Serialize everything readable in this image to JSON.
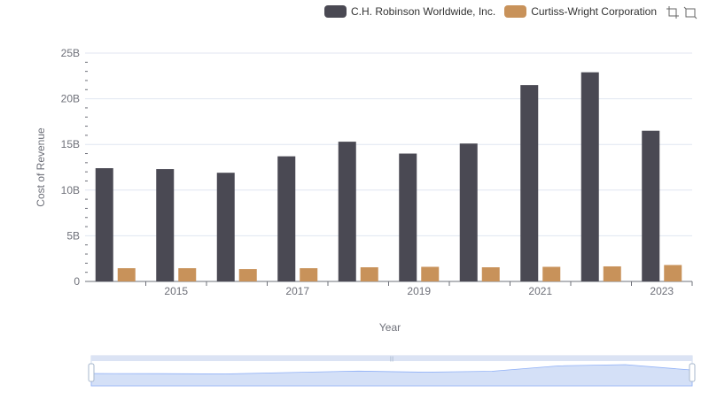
{
  "chart_data": {
    "type": "bar",
    "title": "",
    "xlabel": "Year",
    "ylabel": "Cost of Revenue",
    "categories": [
      "2014",
      "2015",
      "2016",
      "2017",
      "2018",
      "2019",
      "2020",
      "2021",
      "2022",
      "2023"
    ],
    "x_tick_labels": [
      "2015",
      "2017",
      "2019",
      "2021",
      "2023"
    ],
    "y_tick_labels": [
      "0",
      "5B",
      "10B",
      "15B",
      "20B",
      "25B"
    ],
    "ylim": [
      0,
      25000000000
    ],
    "grid": true,
    "legend_position": "top-right",
    "series": [
      {
        "name": "C.H. Robinson Worldwide, Inc.",
        "color": "#4a4953",
        "values": [
          12400000000,
          12300000000,
          11900000000,
          13700000000,
          15300000000,
          14000000000,
          15100000000,
          21500000000,
          22900000000,
          16500000000
        ]
      },
      {
        "name": "Curtiss-Wright Corporation",
        "color": "#c8925a",
        "values": [
          1450000000,
          1450000000,
          1350000000,
          1450000000,
          1550000000,
          1600000000,
          1550000000,
          1600000000,
          1650000000,
          1800000000
        ]
      }
    ]
  },
  "toolbox": {
    "zoom_icon": "zoom-icon",
    "restore_icon": "restore-icon"
  },
  "datazoom": {
    "range_start_percent": 0,
    "range_end_percent": 100,
    "handle_color": "#a7b7cc",
    "fill_color": "#d4e0f7"
  }
}
